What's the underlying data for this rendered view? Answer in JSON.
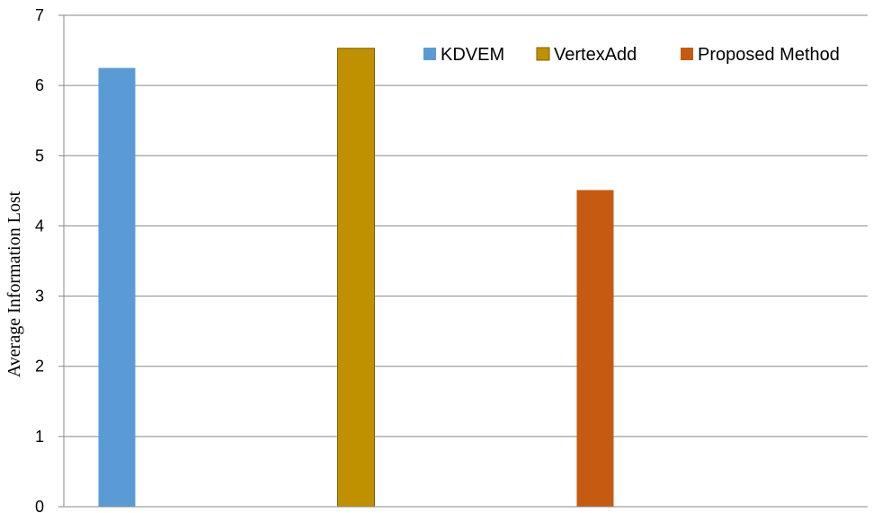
{
  "chart_data": {
    "type": "bar",
    "title": "",
    "xlabel": "",
    "ylabel": "Average Information Lost",
    "ylim": [
      0,
      7
    ],
    "yticks": [
      0,
      1,
      2,
      3,
      4,
      5,
      6,
      7
    ],
    "grid": true,
    "legend_position": "top-right",
    "series": [
      {
        "name": "KDVEM",
        "value": 6.25,
        "color": "#5b9bd5"
      },
      {
        "name": "VertexAdd",
        "value": 6.53,
        "color": "#bf9000"
      },
      {
        "name": "Proposed Method",
        "value": 4.51,
        "color": "#c55a11"
      }
    ]
  }
}
